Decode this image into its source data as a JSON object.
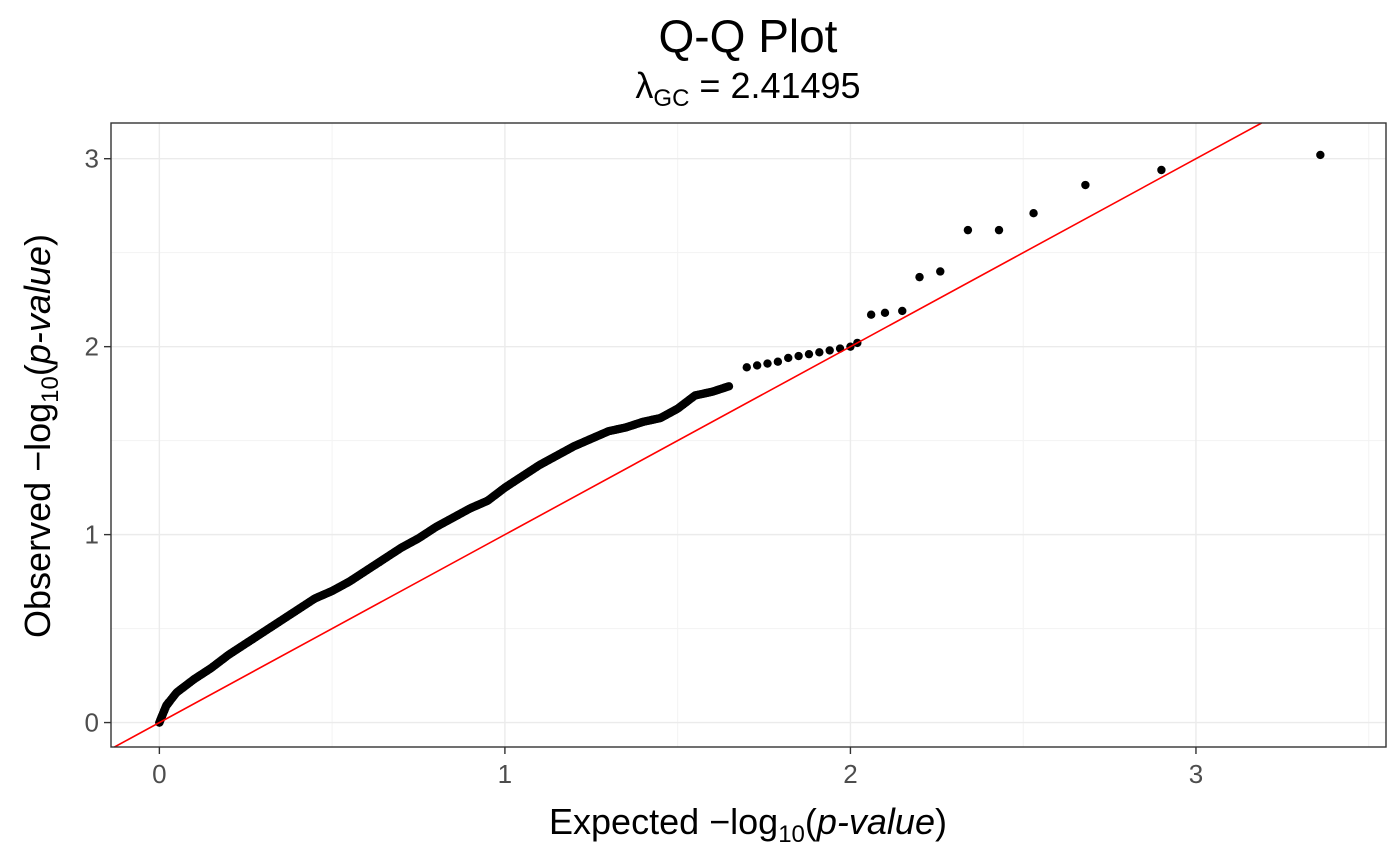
{
  "chart_data": {
    "type": "scatter",
    "title": "Q-Q Plot",
    "subtitle": {
      "lambda_symbol": "λ",
      "lambda_subscript": "GC",
      "equals": " = ",
      "value": "2.41495"
    },
    "xlabel": {
      "prefix": "Expected  −log",
      "subscript": "10",
      "open": "(",
      "italic": "p-value",
      "close": ")"
    },
    "ylabel": {
      "prefix": "Observed  −log",
      "subscript": "10",
      "open": "(",
      "italic": "p-value",
      "close": ")"
    },
    "xlim": [
      -0.14,
      3.55
    ],
    "ylim": [
      -0.13,
      3.19
    ],
    "x_ticks": [
      0,
      1,
      2,
      3
    ],
    "y_ticks": [
      0,
      1,
      2,
      3
    ],
    "x_tick_labels": [
      "0",
      "1",
      "2",
      "3"
    ],
    "y_tick_labels": [
      "0",
      "1",
      "2",
      "3"
    ],
    "grid": true,
    "reference_line": {
      "slope": 1,
      "intercept": 0,
      "color": "#ff0000"
    },
    "point_color": "#000000",
    "curve_anchors": [
      [
        0.0,
        0.0
      ],
      [
        0.02,
        0.09
      ],
      [
        0.05,
        0.16
      ],
      [
        0.1,
        0.23
      ],
      [
        0.15,
        0.29
      ],
      [
        0.2,
        0.36
      ],
      [
        0.25,
        0.42
      ],
      [
        0.3,
        0.48
      ],
      [
        0.35,
        0.54
      ],
      [
        0.4,
        0.6
      ],
      [
        0.45,
        0.66
      ],
      [
        0.5,
        0.7
      ],
      [
        0.55,
        0.75
      ],
      [
        0.6,
        0.81
      ],
      [
        0.65,
        0.87
      ],
      [
        0.7,
        0.93
      ],
      [
        0.75,
        0.98
      ],
      [
        0.8,
        1.04
      ],
      [
        0.85,
        1.09
      ],
      [
        0.9,
        1.14
      ],
      [
        0.95,
        1.18
      ],
      [
        1.0,
        1.25
      ],
      [
        1.05,
        1.31
      ],
      [
        1.1,
        1.37
      ],
      [
        1.15,
        1.42
      ],
      [
        1.2,
        1.47
      ],
      [
        1.25,
        1.51
      ],
      [
        1.3,
        1.55
      ],
      [
        1.35,
        1.57
      ],
      [
        1.4,
        1.6
      ],
      [
        1.45,
        1.62
      ],
      [
        1.5,
        1.67
      ],
      [
        1.55,
        1.74
      ],
      [
        1.6,
        1.76
      ],
      [
        1.65,
        1.79
      ]
    ],
    "tail_points": [
      [
        1.7,
        1.89
      ],
      [
        1.73,
        1.9
      ],
      [
        1.76,
        1.91
      ],
      [
        1.79,
        1.92
      ],
      [
        1.82,
        1.94
      ],
      [
        1.85,
        1.95
      ],
      [
        1.88,
        1.96
      ],
      [
        1.91,
        1.97
      ],
      [
        1.94,
        1.98
      ],
      [
        1.97,
        1.99
      ],
      [
        2.0,
        2.0
      ],
      [
        2.02,
        2.02
      ],
      [
        2.06,
        2.17
      ],
      [
        2.1,
        2.18
      ],
      [
        2.15,
        2.19
      ],
      [
        2.2,
        2.37
      ],
      [
        2.26,
        2.4
      ],
      [
        2.34,
        2.62
      ],
      [
        2.43,
        2.62
      ],
      [
        2.53,
        2.71
      ],
      [
        2.68,
        2.86
      ],
      [
        2.9,
        2.94
      ],
      [
        3.36,
        3.02
      ]
    ]
  }
}
